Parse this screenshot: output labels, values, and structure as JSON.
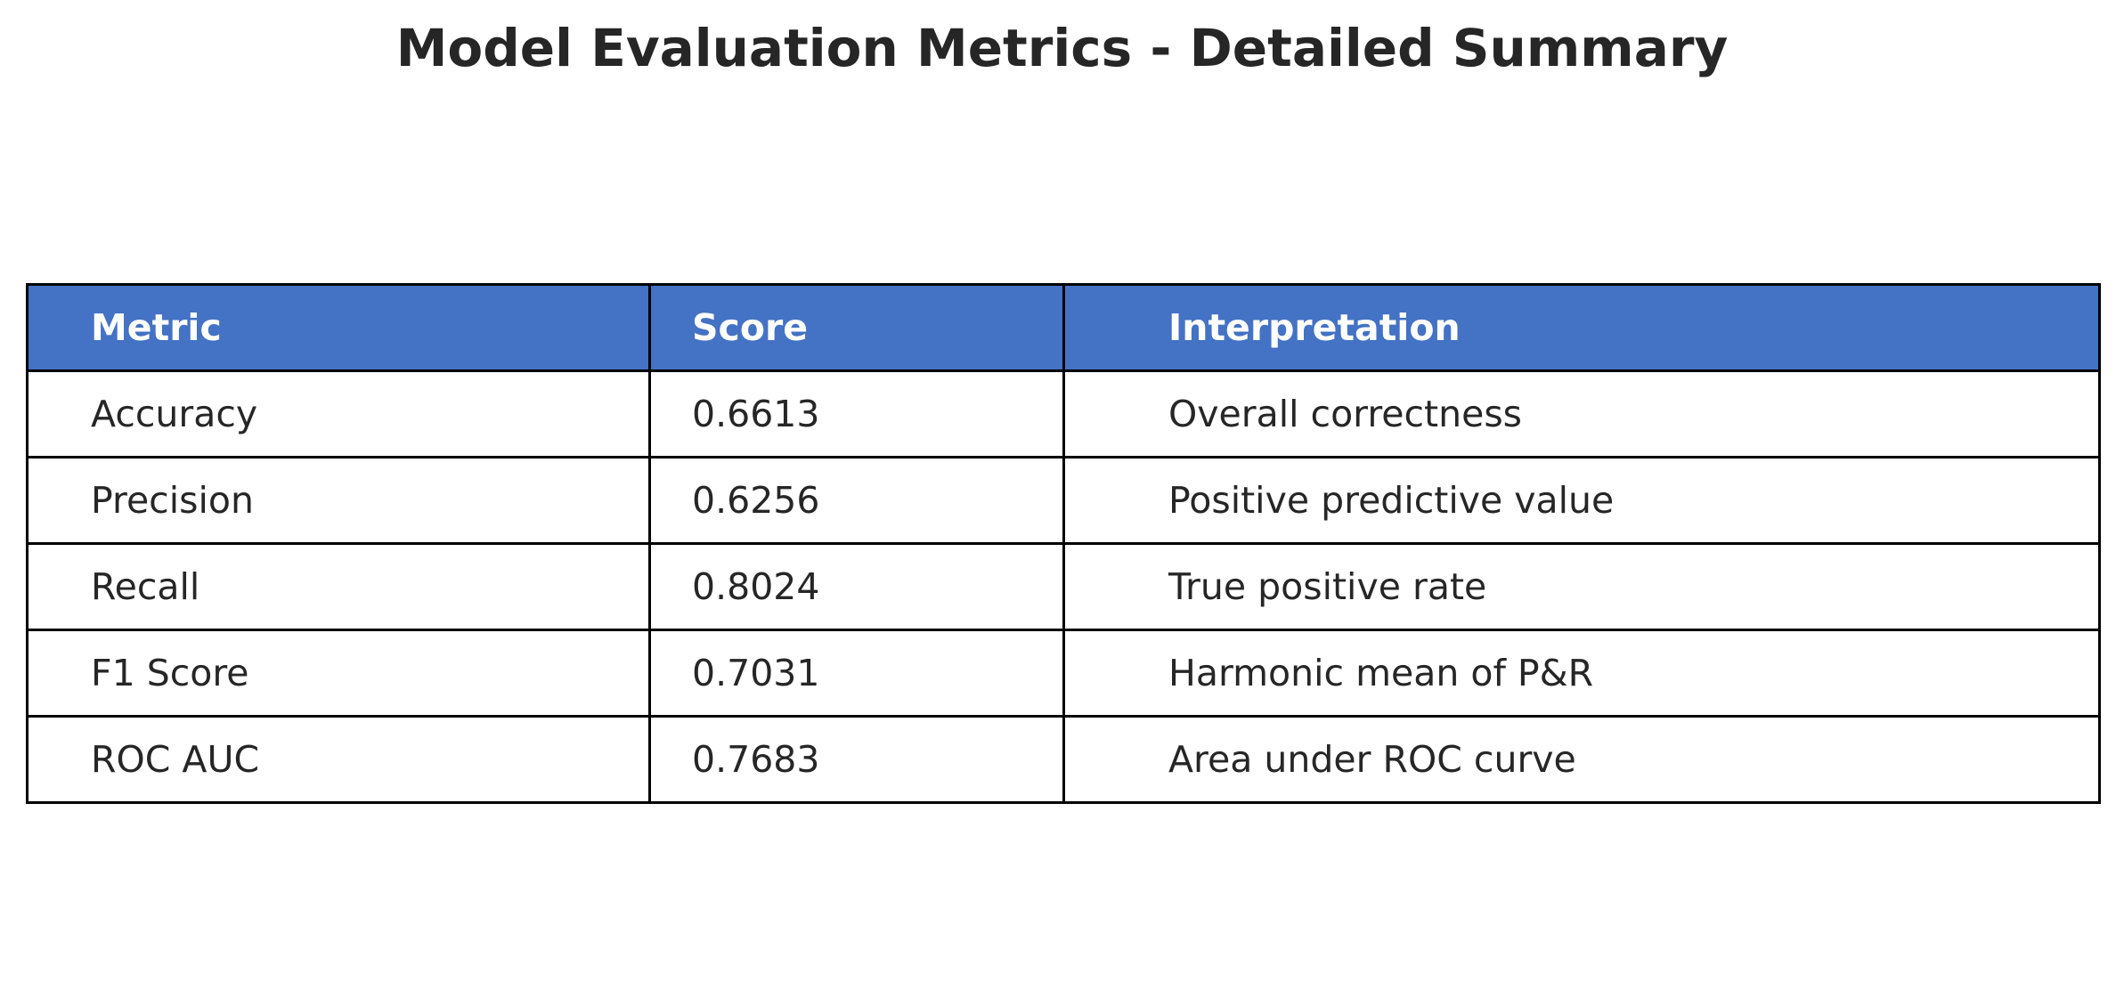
{
  "colors": {
    "header_background": "#4472c4",
    "header_text": "#ffffff",
    "cell_background": "#ffffff",
    "cell_text": "#262626",
    "grid_lines": "#000000"
  },
  "chart_data": {
    "type": "table",
    "title": "Model Evaluation Metrics - Detailed Summary",
    "columns": [
      "Metric",
      "Score",
      "Interpretation"
    ],
    "rows": [
      [
        "Accuracy",
        "0.6613",
        "Overall correctness"
      ],
      [
        "Precision",
        "0.6256",
        "Positive predictive value"
      ],
      [
        "Recall",
        "0.8024",
        "True positive rate"
      ],
      [
        "F1 Score",
        "0.7031",
        "Harmonic mean of P&R"
      ],
      [
        "ROC AUC",
        "0.7683",
        "Area under ROC curve"
      ]
    ]
  }
}
